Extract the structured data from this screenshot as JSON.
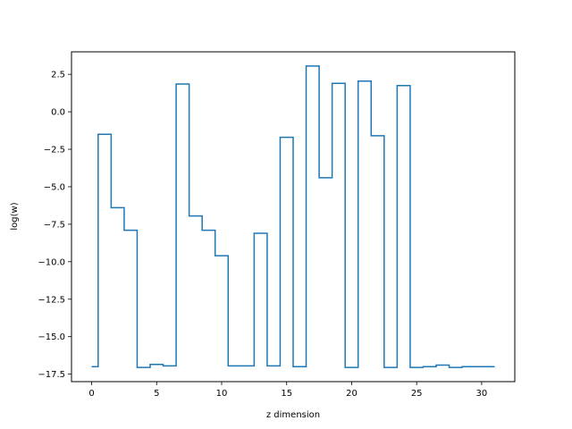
{
  "chart_data": {
    "type": "line",
    "drawstyle": "steps-mid",
    "title": "",
    "xlabel": "z dimension",
    "ylabel": "log(w)",
    "xlim": [
      -1.55,
      32.55
    ],
    "ylim": [
      -18.0,
      4.0
    ],
    "grid": false,
    "legend": "none",
    "line_color": "#1f77b4",
    "xticks": [
      {
        "value": 0,
        "label": "0"
      },
      {
        "value": 5,
        "label": "5"
      },
      {
        "value": 10,
        "label": "10"
      },
      {
        "value": 15,
        "label": "15"
      },
      {
        "value": 20,
        "label": "20"
      },
      {
        "value": 25,
        "label": "25"
      },
      {
        "value": 30,
        "label": "30"
      }
    ],
    "yticks": [
      {
        "value": 2.5,
        "label": "2.5"
      },
      {
        "value": 0.0,
        "label": "0.0"
      },
      {
        "value": -2.5,
        "label": "−2.5"
      },
      {
        "value": -5.0,
        "label": "−5.0"
      },
      {
        "value": -7.5,
        "label": "−7.5"
      },
      {
        "value": -10.0,
        "label": "−10.0"
      },
      {
        "value": -12.5,
        "label": "−12.5"
      },
      {
        "value": -15.0,
        "label": "−15.0"
      },
      {
        "value": -17.5,
        "label": "−17.5"
      }
    ],
    "series": [
      {
        "x": [
          0,
          1,
          2,
          3,
          4,
          5,
          6,
          7,
          8,
          9,
          10,
          11,
          12,
          13,
          14,
          15,
          16,
          17,
          18,
          19,
          20,
          21,
          22,
          23,
          24,
          25,
          26,
          27,
          28,
          29,
          30,
          31
        ],
        "y": [
          -17.0,
          -1.5,
          -6.4,
          -7.9,
          -17.05,
          -16.85,
          -16.95,
          1.85,
          -6.95,
          -7.9,
          -9.6,
          -16.95,
          -16.95,
          -8.1,
          -16.95,
          -1.7,
          -17.0,
          3.05,
          -4.4,
          1.9,
          -17.05,
          2.05,
          -1.6,
          -17.05,
          1.75,
          -17.05,
          -17.0,
          -16.9,
          -17.05,
          -17.0,
          -17.0,
          -17.0
        ]
      }
    ]
  }
}
